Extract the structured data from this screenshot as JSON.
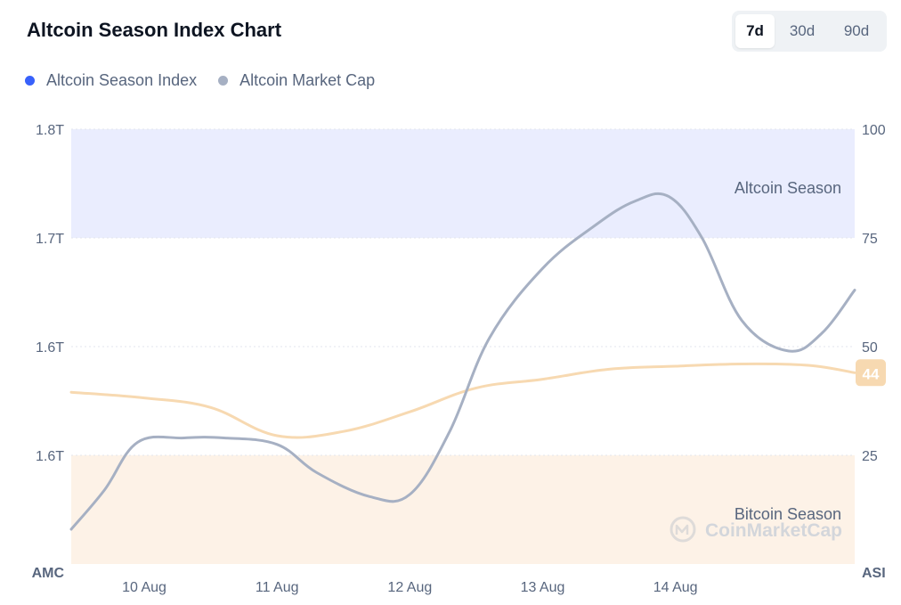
{
  "header": {
    "title": "Altcoin Season Index Chart",
    "ranges": [
      {
        "label": "7d",
        "active": true
      },
      {
        "label": "30d",
        "active": false
      },
      {
        "label": "90d",
        "active": false
      }
    ]
  },
  "legend": [
    {
      "label": "Altcoin Season Index",
      "color": "#3861fb"
    },
    {
      "label": "Altcoin Market Cap",
      "color": "#a6b0c3"
    }
  ],
  "chart_data": {
    "type": "line",
    "left_axis": {
      "name": "AMC",
      "ticks": [
        "1.8T",
        "1.7T",
        "1.6T",
        "1.6T"
      ]
    },
    "right_axis": {
      "name": "ASI",
      "ticks": [
        "100",
        "75",
        "50",
        "25"
      ],
      "range": [
        0,
        100
      ]
    },
    "x_labels": [
      "10 Aug",
      "11 Aug",
      "12 Aug",
      "13 Aug",
      "14 Aug"
    ],
    "zones": [
      {
        "label": "Altcoin Season",
        "from": 75,
        "to": 100,
        "color": "#eaedfe"
      },
      {
        "label": "Bitcoin Season",
        "from": 0,
        "to": 25,
        "color": "#fdf2e7"
      }
    ],
    "series": [
      {
        "name": "Altcoin Season Index",
        "color": "#f7d9b1",
        "current_label": "44",
        "x": [
          9.45,
          10.0,
          10.5,
          11.0,
          11.5,
          12.0,
          12.5,
          13.0,
          13.5,
          14.0,
          14.5,
          15.0,
          15.35
        ],
        "y": [
          39.5,
          38.2,
          36.0,
          29.5,
          30.5,
          35.0,
          40.5,
          42.5,
          44.8,
          45.5,
          46.0,
          45.7,
          44.0
        ]
      },
      {
        "name": "Altcoin Market Cap",
        "color": "#a6b0c3",
        "x": [
          9.45,
          9.7,
          9.95,
          10.3,
          10.6,
          11.0,
          11.3,
          11.7,
          12.0,
          12.3,
          12.6,
          13.0,
          13.4,
          13.7,
          13.95,
          14.2,
          14.5,
          14.85,
          15.1,
          15.35
        ],
        "y": [
          8.0,
          17.0,
          28.0,
          29.0,
          29.0,
          27.5,
          21.0,
          15.5,
          16.0,
          30.5,
          52.0,
          68.0,
          78.0,
          83.5,
          84.5,
          75.0,
          56.0,
          49.0,
          53.0,
          63.0
        ]
      }
    ],
    "watermark": "CoinMarketCap"
  }
}
